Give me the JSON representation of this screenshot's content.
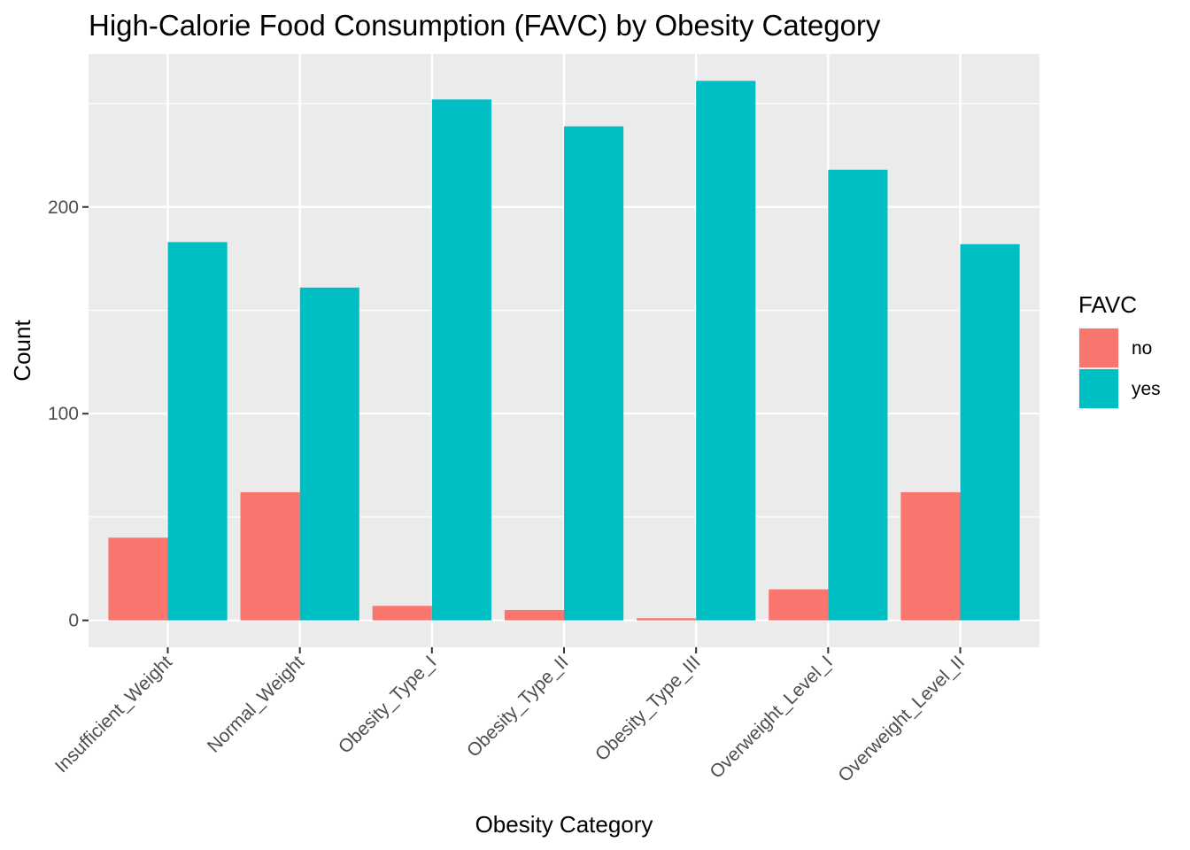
{
  "chart_data": {
    "type": "bar",
    "title": "High-Calorie Food Consumption (FAVC) by Obesity Category",
    "xlabel": "Obesity Category",
    "ylabel": "Count",
    "categories": [
      "Insufficient_Weight",
      "Normal_Weight",
      "Obesity_Type_I",
      "Obesity_Type_II",
      "Obesity_Type_III",
      "Overweight_Level_I",
      "Overweight_Level_II"
    ],
    "series": [
      {
        "name": "no",
        "color": "#F8766D",
        "values": [
          40,
          62,
          7,
          5,
          1,
          15,
          62
        ]
      },
      {
        "name": "yes",
        "color": "#00BFC4",
        "values": [
          183,
          161,
          252,
          239,
          261,
          218,
          182
        ]
      }
    ],
    "ylim": [
      -13,
      274
    ],
    "yticks": [
      0,
      100,
      200
    ],
    "y_minor_ticks": [
      50,
      150,
      250
    ],
    "grid": true,
    "panel_background": "#EBEBEB",
    "grid_color": "#FFFFFF",
    "legend": {
      "title": "FAVC",
      "position": "right"
    }
  }
}
